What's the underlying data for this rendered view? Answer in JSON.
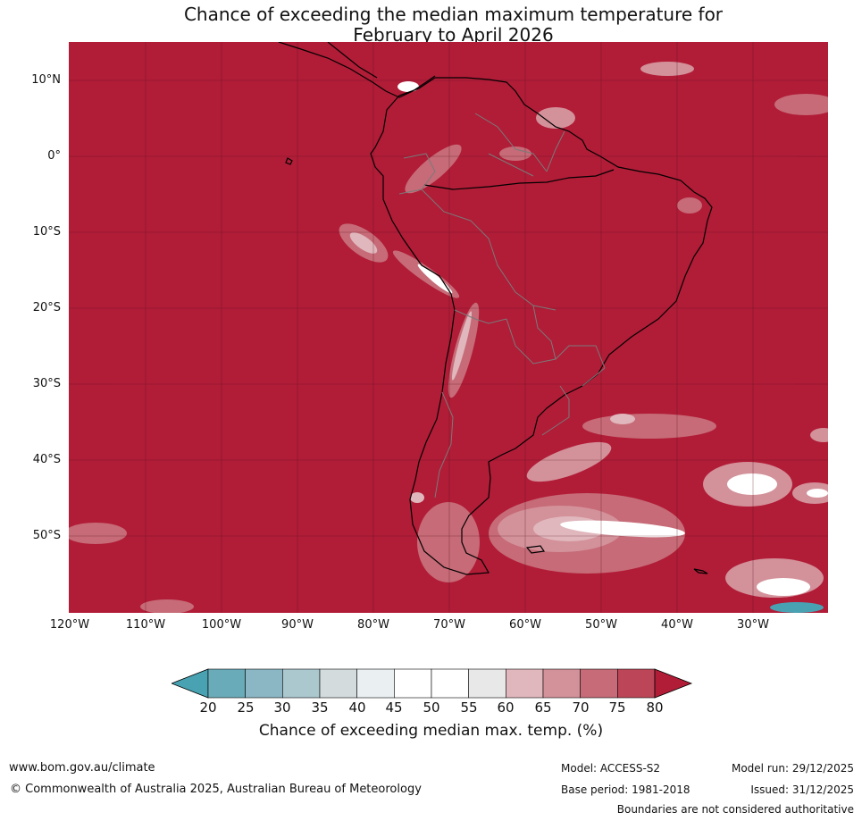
{
  "title": {
    "line1": "Chance of exceeding the median maximum temperature for",
    "line2": "February to April 2026"
  },
  "map": {
    "latitude_labels": [
      "10°N",
      "0°",
      "10°S",
      "20°S",
      "30°S",
      "40°S",
      "50°S"
    ],
    "longitude_labels": [
      "120°W",
      "110°W",
      "100°W",
      "90°W",
      "80°W",
      "70°W",
      "60°W",
      "50°W",
      "40°W",
      "30°W"
    ],
    "background_category": "80+",
    "background_color": "#b11c37"
  },
  "colorbar": {
    "ticks": [
      "20",
      "25",
      "30",
      "35",
      "40",
      "45",
      "50",
      "55",
      "60",
      "65",
      "70",
      "75",
      "80"
    ],
    "colors": [
      "#6aabb9",
      "#8bb6c4",
      "#abc8cf",
      "#d3dbdd",
      "#eaf0f2",
      "#ffffff",
      "#ffffff",
      "#e9e8e9",
      "#e0b7bd",
      "#d3919a",
      "#c66b77",
      "#bc4657"
    ],
    "low_extend_color": "#48a2b2",
    "high_extend_color": "#b11c37",
    "label": "Chance of exceeding median max. temp. (%)"
  },
  "footer": {
    "website": "www.bom.gov.au/climate",
    "copyright": "© Commonwealth of Australia 2025, Australian Bureau of Meteorology",
    "model": "Model: ACCESS-S2",
    "base_period": "Base period: 1981-2018",
    "model_run": "Model run: 29/12/2025",
    "issued": "Issued: 31/12/2025",
    "disclaimer": "Boundaries are not considered authoritative"
  }
}
